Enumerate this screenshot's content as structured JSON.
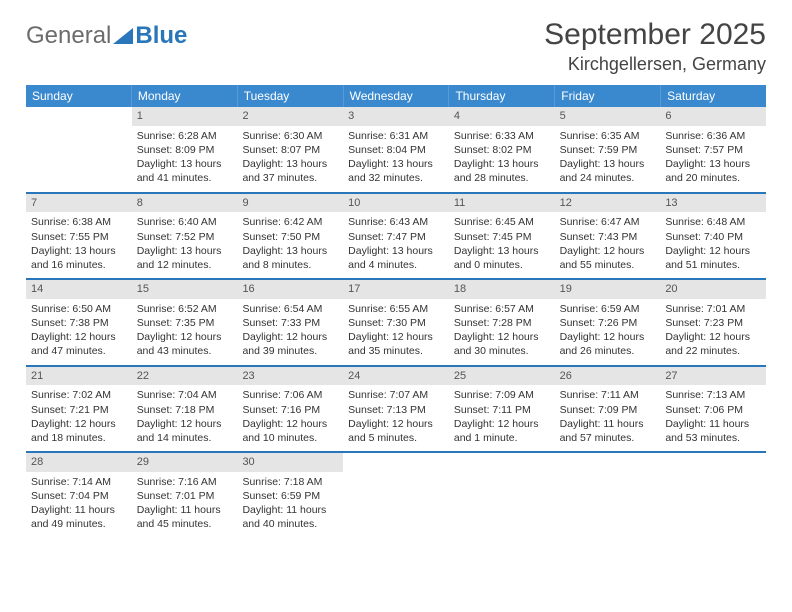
{
  "logo": {
    "part1": "General",
    "part2": "Blue"
  },
  "header": {
    "title": "September 2025",
    "subtitle": "Kirchgellersen, Germany"
  },
  "colors": {
    "accent": "#3a89cf",
    "rule": "#2a76bb",
    "daybg": "#e5e5e5"
  },
  "dayNames": [
    "Sunday",
    "Monday",
    "Tuesday",
    "Wednesday",
    "Thursday",
    "Friday",
    "Saturday"
  ],
  "weeks": [
    [
      {
        "n": "",
        "l1": "",
        "l2": "",
        "l3": "",
        "l4": ""
      },
      {
        "n": "1",
        "l1": "Sunrise: 6:28 AM",
        "l2": "Sunset: 8:09 PM",
        "l3": "Daylight: 13 hours",
        "l4": "and 41 minutes."
      },
      {
        "n": "2",
        "l1": "Sunrise: 6:30 AM",
        "l2": "Sunset: 8:07 PM",
        "l3": "Daylight: 13 hours",
        "l4": "and 37 minutes."
      },
      {
        "n": "3",
        "l1": "Sunrise: 6:31 AM",
        "l2": "Sunset: 8:04 PM",
        "l3": "Daylight: 13 hours",
        "l4": "and 32 minutes."
      },
      {
        "n": "4",
        "l1": "Sunrise: 6:33 AM",
        "l2": "Sunset: 8:02 PM",
        "l3": "Daylight: 13 hours",
        "l4": "and 28 minutes."
      },
      {
        "n": "5",
        "l1": "Sunrise: 6:35 AM",
        "l2": "Sunset: 7:59 PM",
        "l3": "Daylight: 13 hours",
        "l4": "and 24 minutes."
      },
      {
        "n": "6",
        "l1": "Sunrise: 6:36 AM",
        "l2": "Sunset: 7:57 PM",
        "l3": "Daylight: 13 hours",
        "l4": "and 20 minutes."
      }
    ],
    [
      {
        "n": "7",
        "l1": "Sunrise: 6:38 AM",
        "l2": "Sunset: 7:55 PM",
        "l3": "Daylight: 13 hours",
        "l4": "and 16 minutes."
      },
      {
        "n": "8",
        "l1": "Sunrise: 6:40 AM",
        "l2": "Sunset: 7:52 PM",
        "l3": "Daylight: 13 hours",
        "l4": "and 12 minutes."
      },
      {
        "n": "9",
        "l1": "Sunrise: 6:42 AM",
        "l2": "Sunset: 7:50 PM",
        "l3": "Daylight: 13 hours",
        "l4": "and 8 minutes."
      },
      {
        "n": "10",
        "l1": "Sunrise: 6:43 AM",
        "l2": "Sunset: 7:47 PM",
        "l3": "Daylight: 13 hours",
        "l4": "and 4 minutes."
      },
      {
        "n": "11",
        "l1": "Sunrise: 6:45 AM",
        "l2": "Sunset: 7:45 PM",
        "l3": "Daylight: 13 hours",
        "l4": "and 0 minutes."
      },
      {
        "n": "12",
        "l1": "Sunrise: 6:47 AM",
        "l2": "Sunset: 7:43 PM",
        "l3": "Daylight: 12 hours",
        "l4": "and 55 minutes."
      },
      {
        "n": "13",
        "l1": "Sunrise: 6:48 AM",
        "l2": "Sunset: 7:40 PM",
        "l3": "Daylight: 12 hours",
        "l4": "and 51 minutes."
      }
    ],
    [
      {
        "n": "14",
        "l1": "Sunrise: 6:50 AM",
        "l2": "Sunset: 7:38 PM",
        "l3": "Daylight: 12 hours",
        "l4": "and 47 minutes."
      },
      {
        "n": "15",
        "l1": "Sunrise: 6:52 AM",
        "l2": "Sunset: 7:35 PM",
        "l3": "Daylight: 12 hours",
        "l4": "and 43 minutes."
      },
      {
        "n": "16",
        "l1": "Sunrise: 6:54 AM",
        "l2": "Sunset: 7:33 PM",
        "l3": "Daylight: 12 hours",
        "l4": "and 39 minutes."
      },
      {
        "n": "17",
        "l1": "Sunrise: 6:55 AM",
        "l2": "Sunset: 7:30 PM",
        "l3": "Daylight: 12 hours",
        "l4": "and 35 minutes."
      },
      {
        "n": "18",
        "l1": "Sunrise: 6:57 AM",
        "l2": "Sunset: 7:28 PM",
        "l3": "Daylight: 12 hours",
        "l4": "and 30 minutes."
      },
      {
        "n": "19",
        "l1": "Sunrise: 6:59 AM",
        "l2": "Sunset: 7:26 PM",
        "l3": "Daylight: 12 hours",
        "l4": "and 26 minutes."
      },
      {
        "n": "20",
        "l1": "Sunrise: 7:01 AM",
        "l2": "Sunset: 7:23 PM",
        "l3": "Daylight: 12 hours",
        "l4": "and 22 minutes."
      }
    ],
    [
      {
        "n": "21",
        "l1": "Sunrise: 7:02 AM",
        "l2": "Sunset: 7:21 PM",
        "l3": "Daylight: 12 hours",
        "l4": "and 18 minutes."
      },
      {
        "n": "22",
        "l1": "Sunrise: 7:04 AM",
        "l2": "Sunset: 7:18 PM",
        "l3": "Daylight: 12 hours",
        "l4": "and 14 minutes."
      },
      {
        "n": "23",
        "l1": "Sunrise: 7:06 AM",
        "l2": "Sunset: 7:16 PM",
        "l3": "Daylight: 12 hours",
        "l4": "and 10 minutes."
      },
      {
        "n": "24",
        "l1": "Sunrise: 7:07 AM",
        "l2": "Sunset: 7:13 PM",
        "l3": "Daylight: 12 hours",
        "l4": "and 5 minutes."
      },
      {
        "n": "25",
        "l1": "Sunrise: 7:09 AM",
        "l2": "Sunset: 7:11 PM",
        "l3": "Daylight: 12 hours",
        "l4": "and 1 minute."
      },
      {
        "n": "26",
        "l1": "Sunrise: 7:11 AM",
        "l2": "Sunset: 7:09 PM",
        "l3": "Daylight: 11 hours",
        "l4": "and 57 minutes."
      },
      {
        "n": "27",
        "l1": "Sunrise: 7:13 AM",
        "l2": "Sunset: 7:06 PM",
        "l3": "Daylight: 11 hours",
        "l4": "and 53 minutes."
      }
    ],
    [
      {
        "n": "28",
        "l1": "Sunrise: 7:14 AM",
        "l2": "Sunset: 7:04 PM",
        "l3": "Daylight: 11 hours",
        "l4": "and 49 minutes."
      },
      {
        "n": "29",
        "l1": "Sunrise: 7:16 AM",
        "l2": "Sunset: 7:01 PM",
        "l3": "Daylight: 11 hours",
        "l4": "and 45 minutes."
      },
      {
        "n": "30",
        "l1": "Sunrise: 7:18 AM",
        "l2": "Sunset: 6:59 PM",
        "l3": "Daylight: 11 hours",
        "l4": "and 40 minutes."
      },
      {
        "n": "",
        "l1": "",
        "l2": "",
        "l3": "",
        "l4": ""
      },
      {
        "n": "",
        "l1": "",
        "l2": "",
        "l3": "",
        "l4": ""
      },
      {
        "n": "",
        "l1": "",
        "l2": "",
        "l3": "",
        "l4": ""
      },
      {
        "n": "",
        "l1": "",
        "l2": "",
        "l3": "",
        "l4": ""
      }
    ]
  ]
}
